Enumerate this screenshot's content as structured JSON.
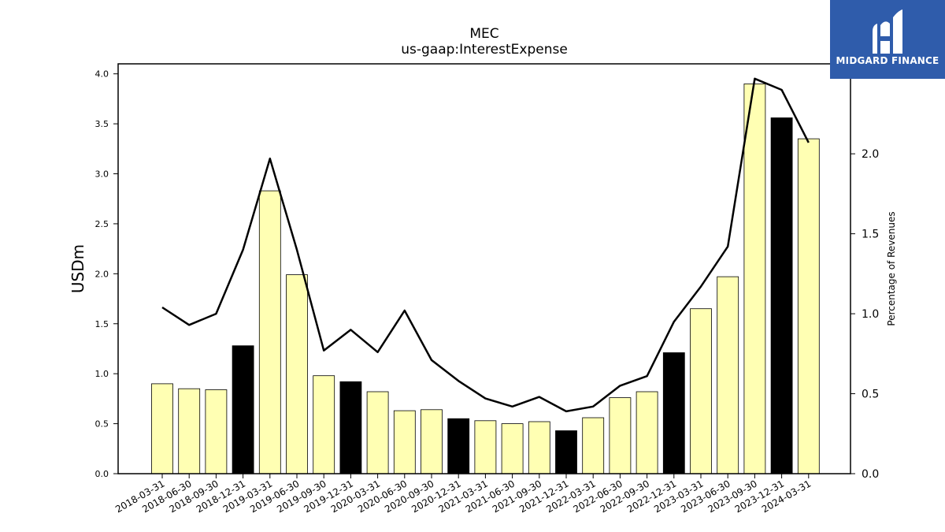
{
  "chart_data": {
    "type": "bar",
    "title": "MEC",
    "subtitle": "us-gaap:InterestExpense",
    "ylabel": "USDm",
    "y2label": "Percentage of Revenues",
    "ylim": [
      0,
      4.1
    ],
    "y2lim": [
      0,
      2.5625
    ],
    "yticks": [
      "0.0",
      "0.5",
      "1.0",
      "1.5",
      "2.0",
      "2.5",
      "3.0",
      "3.5",
      "4.0"
    ],
    "y2ticks": [
      "0.0",
      "0.5",
      "1.0",
      "1.5",
      "2.0"
    ],
    "grid": false,
    "categories": [
      "2018-03-31",
      "2018-06-30",
      "2018-09-30",
      "2018-12-31",
      "2019-03-31",
      "2019-06-30",
      "2019-09-30",
      "2019-12-31",
      "2020-03-31",
      "2020-06-30",
      "2020-09-30",
      "2020-12-31",
      "2021-03-31",
      "2021-06-30",
      "2021-09-30",
      "2021-12-31",
      "2022-03-31",
      "2022-06-30",
      "2022-09-30",
      "2022-12-31",
      "2023-03-31",
      "2023-06-30",
      "2023-09-30",
      "2023-12-31",
      "2024-03-31"
    ],
    "series": [
      {
        "type": "bar",
        "values": [
          0.9,
          0.85,
          0.84,
          1.28,
          2.83,
          1.99,
          0.98,
          0.92,
          0.82,
          0.63,
          0.64,
          0.55,
          0.53,
          0.5,
          0.52,
          0.43,
          0.56,
          0.76,
          0.82,
          1.21,
          1.65,
          1.97,
          3.9,
          3.56,
          3.35
        ],
        "highlight": [
          false,
          false,
          false,
          true,
          false,
          false,
          false,
          true,
          false,
          false,
          false,
          true,
          false,
          false,
          false,
          true,
          false,
          false,
          false,
          true,
          false,
          false,
          false,
          true,
          false
        ],
        "color": "#ffffb3",
        "highlight_color": "#000000"
      },
      {
        "type": "line",
        "axis": "right",
        "values": [
          1.04,
          0.93,
          1.0,
          1.4,
          1.97,
          1.4,
          0.77,
          0.9,
          0.76,
          1.02,
          0.71,
          0.58,
          0.47,
          0.42,
          0.48,
          0.39,
          0.42,
          0.55,
          0.61,
          0.95,
          1.17,
          1.42,
          2.47,
          2.4,
          2.07
        ],
        "color": "#000000"
      }
    ]
  },
  "logo": {
    "text": "MIDGARD FINANCE",
    "background": "#2f5cab"
  }
}
